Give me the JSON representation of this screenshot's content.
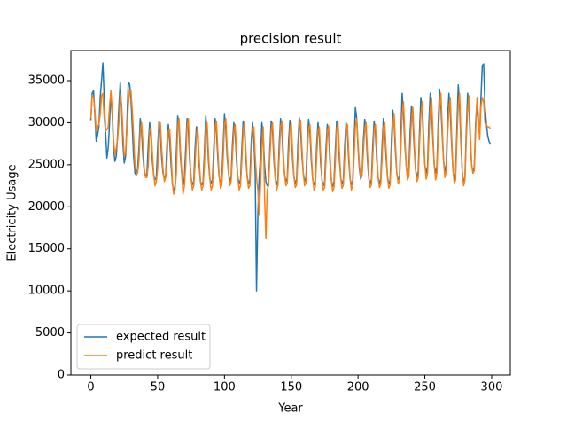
{
  "chart_data": {
    "type": "line",
    "title": "precision result",
    "x_label": "Year",
    "y_label": "Electricity Usage",
    "xlim": [
      -14.95,
      313.95
    ],
    "ylim": [
      0,
      38585
    ],
    "xticks": [
      0,
      50,
      100,
      150,
      200,
      250,
      300
    ],
    "yticks": [
      0,
      5000,
      10000,
      15000,
      20000,
      25000,
      30000,
      35000
    ],
    "grid": false,
    "legend": "lower left",
    "x": [
      0,
      1,
      2,
      3,
      4,
      5,
      6,
      7,
      8,
      9,
      10,
      11,
      12,
      13,
      14,
      15,
      16,
      17,
      18,
      19,
      20,
      21,
      22,
      23,
      24,
      25,
      26,
      27,
      28,
      29,
      30,
      31,
      32,
      33,
      34,
      35,
      36,
      37,
      38,
      39,
      40,
      41,
      42,
      43,
      44,
      45,
      46,
      47,
      48,
      49,
      50,
      51,
      52,
      53,
      54,
      55,
      56,
      57,
      58,
      59,
      60,
      61,
      62,
      63,
      64,
      65,
      66,
      67,
      68,
      69,
      70,
      71,
      72,
      73,
      74,
      75,
      76,
      77,
      78,
      79,
      80,
      81,
      82,
      83,
      84,
      85,
      86,
      87,
      88,
      89,
      90,
      91,
      92,
      93,
      94,
      95,
      96,
      97,
      98,
      99,
      100,
      101,
      102,
      103,
      104,
      105,
      106,
      107,
      108,
      109,
      110,
      111,
      112,
      113,
      114,
      115,
      116,
      117,
      118,
      119,
      120,
      121,
      122,
      123,
      124,
      125,
      126,
      127,
      128,
      129,
      130,
      131,
      132,
      133,
      134,
      135,
      136,
      137,
      138,
      139,
      140,
      141,
      142,
      143,
      144,
      145,
      146,
      147,
      148,
      149,
      150,
      151,
      152,
      153,
      154,
      155,
      156,
      157,
      158,
      159,
      160,
      161,
      162,
      163,
      164,
      165,
      166,
      167,
      168,
      169,
      170,
      171,
      172,
      173,
      174,
      175,
      176,
      177,
      178,
      179,
      180,
      181,
      182,
      183,
      184,
      185,
      186,
      187,
      188,
      189,
      190,
      191,
      192,
      193,
      194,
      195,
      196,
      197,
      198,
      199,
      200,
      201,
      202,
      203,
      204,
      205,
      206,
      207,
      208,
      209,
      210,
      211,
      212,
      213,
      214,
      215,
      216,
      217,
      218,
      219,
      220,
      221,
      222,
      223,
      224,
      225,
      226,
      227,
      228,
      229,
      230,
      231,
      232,
      233,
      234,
      235,
      236,
      237,
      238,
      239,
      240,
      241,
      242,
      243,
      244,
      245,
      246,
      247,
      248,
      249,
      250,
      251,
      252,
      253,
      254,
      255,
      256,
      257,
      258,
      259,
      260,
      261,
      262,
      263,
      264,
      265,
      266,
      267,
      268,
      269,
      270,
      271,
      272,
      273,
      274,
      275,
      276,
      277,
      278,
      279,
      280,
      281,
      282,
      283,
      284,
      285,
      286,
      287,
      288,
      289,
      290,
      291,
      292,
      293,
      294,
      295,
      296,
      297,
      298,
      299
    ],
    "series": [
      {
        "name": "expected result",
        "color": "#1f77b4",
        "values": [
          30300,
          33500,
          33800,
          31000,
          27800,
          28500,
          29500,
          33000,
          35000,
          37100,
          33000,
          29000,
          25800,
          27000,
          30000,
          33500,
          31000,
          27000,
          25400,
          26000,
          28500,
          32000,
          34800,
          31500,
          27500,
          25200,
          26000,
          30000,
          34800,
          34600,
          33000,
          29500,
          26000,
          24000,
          23800,
          24500,
          27000,
          30500,
          29000,
          26000,
          24200,
          23600,
          24000,
          27500,
          30000,
          28500,
          25500,
          23800,
          23200,
          23500,
          27000,
          30200,
          28800,
          25800,
          24000,
          23400,
          23800,
          27500,
          29800,
          28000,
          25000,
          22800,
          21800,
          22500,
          26500,
          30800,
          29500,
          26000,
          24000,
          22600,
          23500,
          27000,
          30500,
          29000,
          25500,
          23500,
          22600,
          23000,
          27000,
          29500,
          28500,
          25000,
          23000,
          22600,
          23000,
          26500,
          30800,
          29000,
          25500,
          23400,
          22800,
          23200,
          27000,
          30500,
          29000,
          25800,
          23600,
          22800,
          23300,
          27200,
          31000,
          29200,
          26000,
          24000,
          23000,
          23600,
          27500,
          30000,
          28800,
          25500,
          23500,
          22800,
          23200,
          27000,
          30200,
          29000,
          25800,
          23600,
          22700,
          23200,
          27500,
          30000,
          28000,
          24000,
          10000,
          19000,
          23500,
          26000,
          30000,
          28500,
          25000,
          23000,
          22500,
          23000,
          27000,
          30200,
          29000,
          25500,
          23500,
          22600,
          23200,
          27500,
          30500,
          29000,
          25800,
          23800,
          23000,
          23400,
          27800,
          30300,
          29000,
          25600,
          23600,
          22800,
          23200,
          27500,
          30600,
          29200,
          26000,
          24000,
          23000,
          23500,
          27600,
          30400,
          28800,
          25500,
          23400,
          22600,
          23000,
          27300,
          30000,
          28500,
          25200,
          23200,
          22500,
          23000,
          27000,
          29800,
          28600,
          25300,
          23200,
          22400,
          23000,
          26800,
          30200,
          29000,
          25600,
          23500,
          22700,
          23200,
          27200,
          30000,
          28800,
          25600,
          23400,
          22600,
          23100,
          27500,
          31800,
          30500,
          27000,
          24500,
          23300,
          23800,
          28000,
          30400,
          29000,
          25600,
          23400,
          22800,
          23200,
          27300,
          30200,
          28800,
          25600,
          23500,
          22800,
          23300,
          27400,
          30500,
          29000,
          25800,
          23600,
          22700,
          23200,
          27800,
          31500,
          30000,
          26500,
          24000,
          23200,
          23600,
          28500,
          33500,
          31000,
          27500,
          25000,
          23600,
          24200,
          29000,
          32000,
          30500,
          27000,
          24500,
          23500,
          24200,
          29000,
          33000,
          31500,
          28000,
          25000,
          24000,
          24800,
          30000,
          33500,
          31500,
          28000,
          25000,
          24000,
          24800,
          30000,
          34000,
          32000,
          28500,
          25500,
          24200,
          25000,
          30500,
          33500,
          31500,
          27500,
          24500,
          23200,
          24000,
          29500,
          34500,
          32000,
          27500,
          24200,
          22800,
          23500,
          29000,
          33500,
          32000,
          28000,
          25000,
          24000,
          24800,
          30000,
          32500,
          30000,
          28500,
          33000,
          36800,
          37000,
          32000,
          30000,
          28500,
          27800,
          27500
        ]
      },
      {
        "name": "predict result",
        "color": "#ff7f0e",
        "values": [
          30500,
          33200,
          33000,
          31500,
          29000,
          29500,
          29800,
          31000,
          33200,
          33500,
          30500,
          29000,
          29200,
          29500,
          32000,
          33800,
          31500,
          28000,
          26200,
          27000,
          28000,
          30000,
          33500,
          32200,
          29000,
          26000,
          26500,
          29000,
          32000,
          33800,
          33800,
          31500,
          28500,
          25000,
          24000,
          24000,
          25500,
          29000,
          30000,
          27500,
          24500,
          23500,
          23500,
          25000,
          29000,
          29500,
          26500,
          24000,
          22500,
          23000,
          24500,
          29500,
          30000,
          27000,
          24500,
          23000,
          23500,
          25500,
          29000,
          29200,
          26500,
          23000,
          21500,
          22000,
          24000,
          29500,
          30500,
          27000,
          24000,
          21500,
          22500,
          25000,
          29500,
          30500,
          26500,
          23500,
          22000,
          22500,
          25000,
          28500,
          29500,
          26000,
          23000,
          22000,
          22500,
          25000,
          29500,
          30000,
          26500,
          23500,
          22000,
          22500,
          25500,
          29500,
          30200,
          26800,
          23800,
          22200,
          22600,
          25500,
          29800,
          30500,
          27000,
          24000,
          22500,
          23000,
          26000,
          29000,
          29800,
          26500,
          23500,
          22000,
          22500,
          25500,
          29000,
          30000,
          26800,
          23600,
          22200,
          22500,
          25800,
          29000,
          29500,
          26000,
          23500,
          22000,
          19000,
          22500,
          27000,
          29500,
          21500,
          16200,
          22000,
          22500,
          26000,
          29000,
          30000,
          26500,
          23500,
          22000,
          22500,
          26000,
          29500,
          30200,
          26800,
          23800,
          22500,
          22800,
          26000,
          29200,
          30000,
          26600,
          23600,
          22300,
          22600,
          25800,
          29500,
          30300,
          27000,
          24000,
          22500,
          22800,
          26200,
          29300,
          29800,
          26500,
          23400,
          22000,
          22400,
          25800,
          29000,
          29500,
          26200,
          23200,
          22000,
          22300,
          25500,
          28800,
          29600,
          26300,
          23200,
          21800,
          22300,
          25300,
          29200,
          30000,
          26600,
          23500,
          22200,
          22600,
          25800,
          29000,
          29800,
          26500,
          23400,
          22000,
          22500,
          25800,
          29500,
          30500,
          27500,
          25000,
          23500,
          23800,
          26500,
          29300,
          30000,
          26600,
          23500,
          22300,
          22600,
          25800,
          29200,
          29800,
          26600,
          23500,
          22300,
          22700,
          25800,
          29500,
          30000,
          26800,
          23600,
          22200,
          22600,
          26200,
          29500,
          31000,
          27500,
          24000,
          22800,
          23000,
          26800,
          31000,
          32500,
          28500,
          25000,
          23200,
          23600,
          27000,
          30500,
          31800,
          28000,
          24500,
          23000,
          23400,
          27500,
          31000,
          32500,
          29000,
          25000,
          23300,
          24000,
          28000,
          31500,
          33000,
          29000,
          25000,
          23200,
          24000,
          28500,
          31800,
          33500,
          29500,
          25500,
          23500,
          24200,
          28500,
          31500,
          33000,
          28500,
          24500,
          22800,
          23200,
          28000,
          32000,
          33500,
          28500,
          24200,
          22500,
          23200,
          28000,
          31500,
          33200,
          29000,
          25000,
          24000,
          24300,
          29000,
          33000,
          31000,
          28000,
          32000,
          33000,
          32500,
          30000,
          29800,
          29500,
          29500,
          29300
        ]
      }
    ]
  }
}
